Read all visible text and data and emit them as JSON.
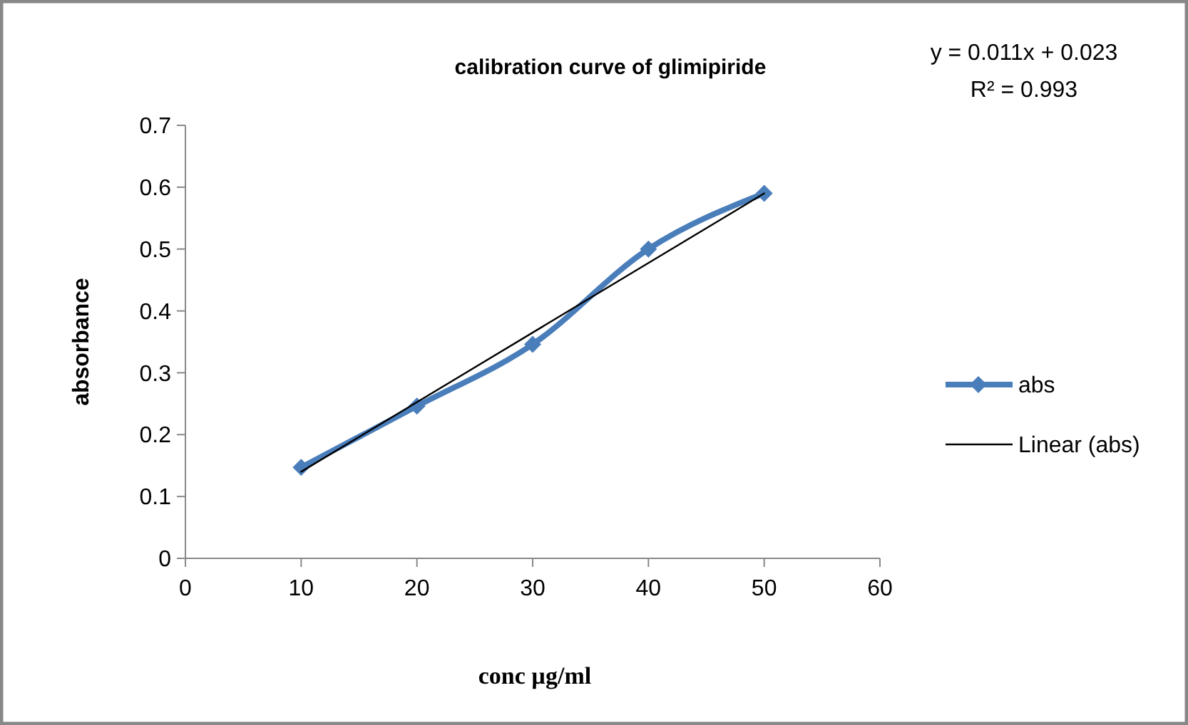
{
  "chart_data": {
    "type": "line",
    "title": "calibration curve of glimipiride",
    "xlabel": "conc µg/ml",
    "ylabel": "absorbance",
    "annotations": [
      "y = 0.011x + 0.023",
      "R² = 0.993"
    ],
    "xlim": [
      0,
      60
    ],
    "xticks": [
      0,
      10,
      20,
      30,
      40,
      50,
      60
    ],
    "ylim": [
      0,
      0.7
    ],
    "yticks": [
      0,
      0.1,
      0.2,
      0.3,
      0.4,
      0.5,
      0.6,
      0.7
    ],
    "grid": false,
    "legend": "right",
    "series": [
      {
        "name": "abs",
        "color": "#4a7ebb",
        "x": [
          10,
          20,
          30,
          40,
          50
        ],
        "values": [
          0.147,
          0.246,
          0.346,
          0.5,
          0.59
        ],
        "marker": "diamond",
        "line_style": "solid"
      },
      {
        "name": "Linear (abs)",
        "type": "line",
        "color": "#000000",
        "x": [
          10,
          50
        ],
        "values": [
          0.14,
          0.59
        ],
        "marker": "none",
        "line_style": "solid"
      }
    ]
  }
}
